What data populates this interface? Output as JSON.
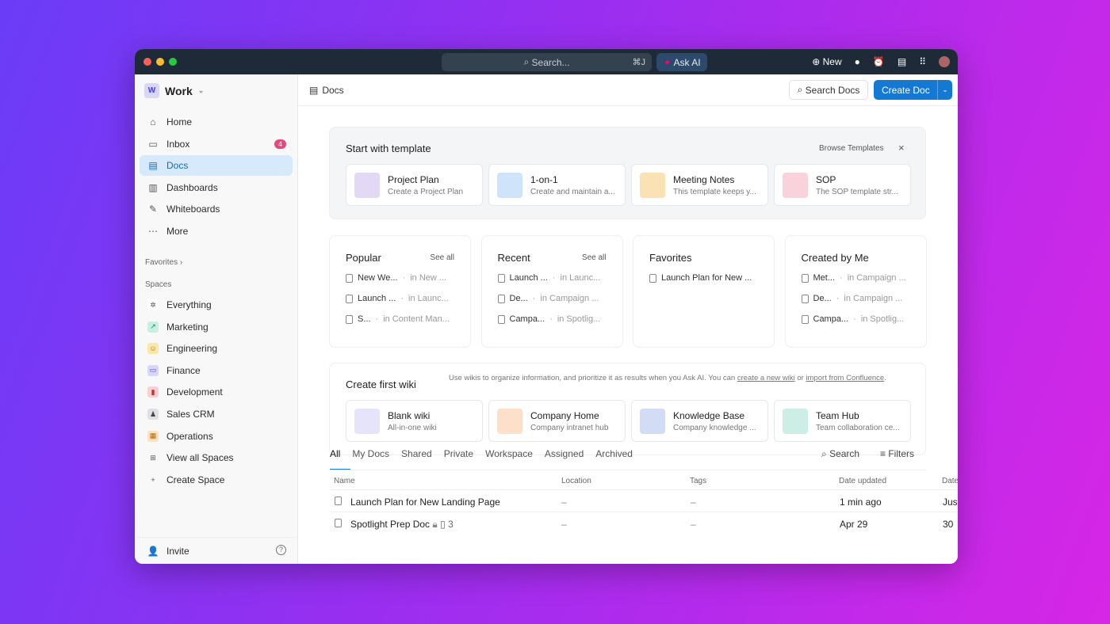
{
  "titlebar": {
    "search_placeholder": "Search...",
    "search_shortcut": "⌘J",
    "ask_ai": "Ask AI",
    "new_label": "New"
  },
  "sidebar": {
    "workspace": {
      "initial": "W",
      "name": "Work"
    },
    "nav": [
      {
        "label": "Home",
        "icon": "⌂"
      },
      {
        "label": "Inbox",
        "icon": "▭",
        "badge": "4"
      },
      {
        "label": "Docs",
        "icon": "▤",
        "active": true
      },
      {
        "label": "Dashboards",
        "icon": "▥"
      },
      {
        "label": "Whiteboards",
        "icon": "✎"
      },
      {
        "label": "More",
        "icon": "⋯"
      }
    ],
    "favorites_label": "Favorites",
    "spaces_label": "Spaces",
    "spaces": [
      {
        "label": "Everything",
        "icon": "✲",
        "color": "#ffffff",
        "fg": "#555"
      },
      {
        "label": "Marketing",
        "icon": "↗",
        "color": "#c9efe4",
        "fg": "#1a8a6a"
      },
      {
        "label": "Engineering",
        "icon": "☺",
        "color": "#fde8a8",
        "fg": "#a0700b"
      },
      {
        "label": "Finance",
        "icon": "▭",
        "color": "#d9d6fb",
        "fg": "#4a44c9"
      },
      {
        "label": "Development",
        "icon": "▮",
        "color": "#f8d2d2",
        "fg": "#b33"
      },
      {
        "label": "Sales CRM",
        "icon": "♟",
        "color": "#dfe1e6",
        "fg": "#444"
      },
      {
        "label": "Operations",
        "icon": "▦",
        "color": "#fde2bd",
        "fg": "#b26a0b"
      },
      {
        "label": "View all Spaces",
        "icon": "⊞",
        "color": "transparent",
        "fg": "#555"
      },
      {
        "label": "Create Space",
        "icon": "+",
        "color": "transparent",
        "fg": "#555"
      }
    ],
    "invite": "Invite"
  },
  "header": {
    "breadcrumb": "Docs",
    "search_docs": "Search Docs",
    "create_doc": "Create Doc"
  },
  "templates": {
    "title": "Start with template",
    "browse": "Browse Templates",
    "items": [
      {
        "title": "Project Plan",
        "desc": "Create a Project Plan",
        "color": "#e3d9f7"
      },
      {
        "title": "1-on-1",
        "desc": "Create and maintain a...",
        "color": "#cfe3fb"
      },
      {
        "title": "Meeting Notes",
        "desc": "This template keeps y...",
        "color": "#fbe2b5"
      },
      {
        "title": "SOP",
        "desc": "The SOP template str...",
        "color": "#f9d3dc"
      }
    ]
  },
  "lists": [
    {
      "title": "Popular",
      "see_all": "See all",
      "items": [
        {
          "name": "New We...",
          "loc": "in New ..."
        },
        {
          "name": "Launch ...",
          "loc": "in Launc..."
        },
        {
          "name": "S...",
          "loc": "in Content Man..."
        }
      ]
    },
    {
      "title": "Recent",
      "see_all": "See all",
      "items": [
        {
          "name": "Launch ...",
          "loc": "in Launc..."
        },
        {
          "name": "De...",
          "loc": "in Campaign ..."
        },
        {
          "name": "Campa...",
          "loc": "in Spotlig..."
        }
      ]
    },
    {
      "title": "Favorites",
      "items": [
        {
          "name": "Launch Plan for New ..."
        }
      ]
    },
    {
      "title": "Created by Me",
      "items": [
        {
          "name": "Met...",
          "loc": "in Campaign ..."
        },
        {
          "name": "De...",
          "loc": "in Campaign ..."
        },
        {
          "name": "Campa...",
          "loc": "in Spotlig..."
        }
      ]
    }
  ],
  "wiki": {
    "title": "Create first wiki",
    "desc": "Use wikis to organize information, and prioritize it as results when you Ask AI. You can ",
    "link1": "create a new wiki",
    "or": " or ",
    "link2": "import from Confluence",
    "end": ".",
    "items": [
      {
        "title": "Blank wiki",
        "desc": "All-in-one wiki",
        "color": "#e6e4fb"
      },
      {
        "title": "Company Home",
        "desc": "Company intranet hub",
        "color": "#fde0c9"
      },
      {
        "title": "Knowledge Base",
        "desc": "Company knowledge ...",
        "color": "#d3dcf5"
      },
      {
        "title": "Team Hub",
        "desc": "Team collaboration ce...",
        "color": "#cdeee4"
      }
    ]
  },
  "tabs": [
    "All",
    "My Docs",
    "Shared",
    "Private",
    "Workspace",
    "Assigned",
    "Archived"
  ],
  "table": {
    "search": "Search",
    "filters": "Filters",
    "columns": [
      "Name",
      "Location",
      "Tags",
      "Date updated",
      "Date"
    ],
    "rows": [
      {
        "name": "Launch Plan for New Landing Page",
        "location": "–",
        "tags": "–",
        "updated": "1 min ago",
        "date": "Jus"
      },
      {
        "name": "Spotlight Prep Doc",
        "pages": "3",
        "location": "–",
        "tags": "–",
        "updated": "Apr 29",
        "date": "30"
      }
    ]
  }
}
